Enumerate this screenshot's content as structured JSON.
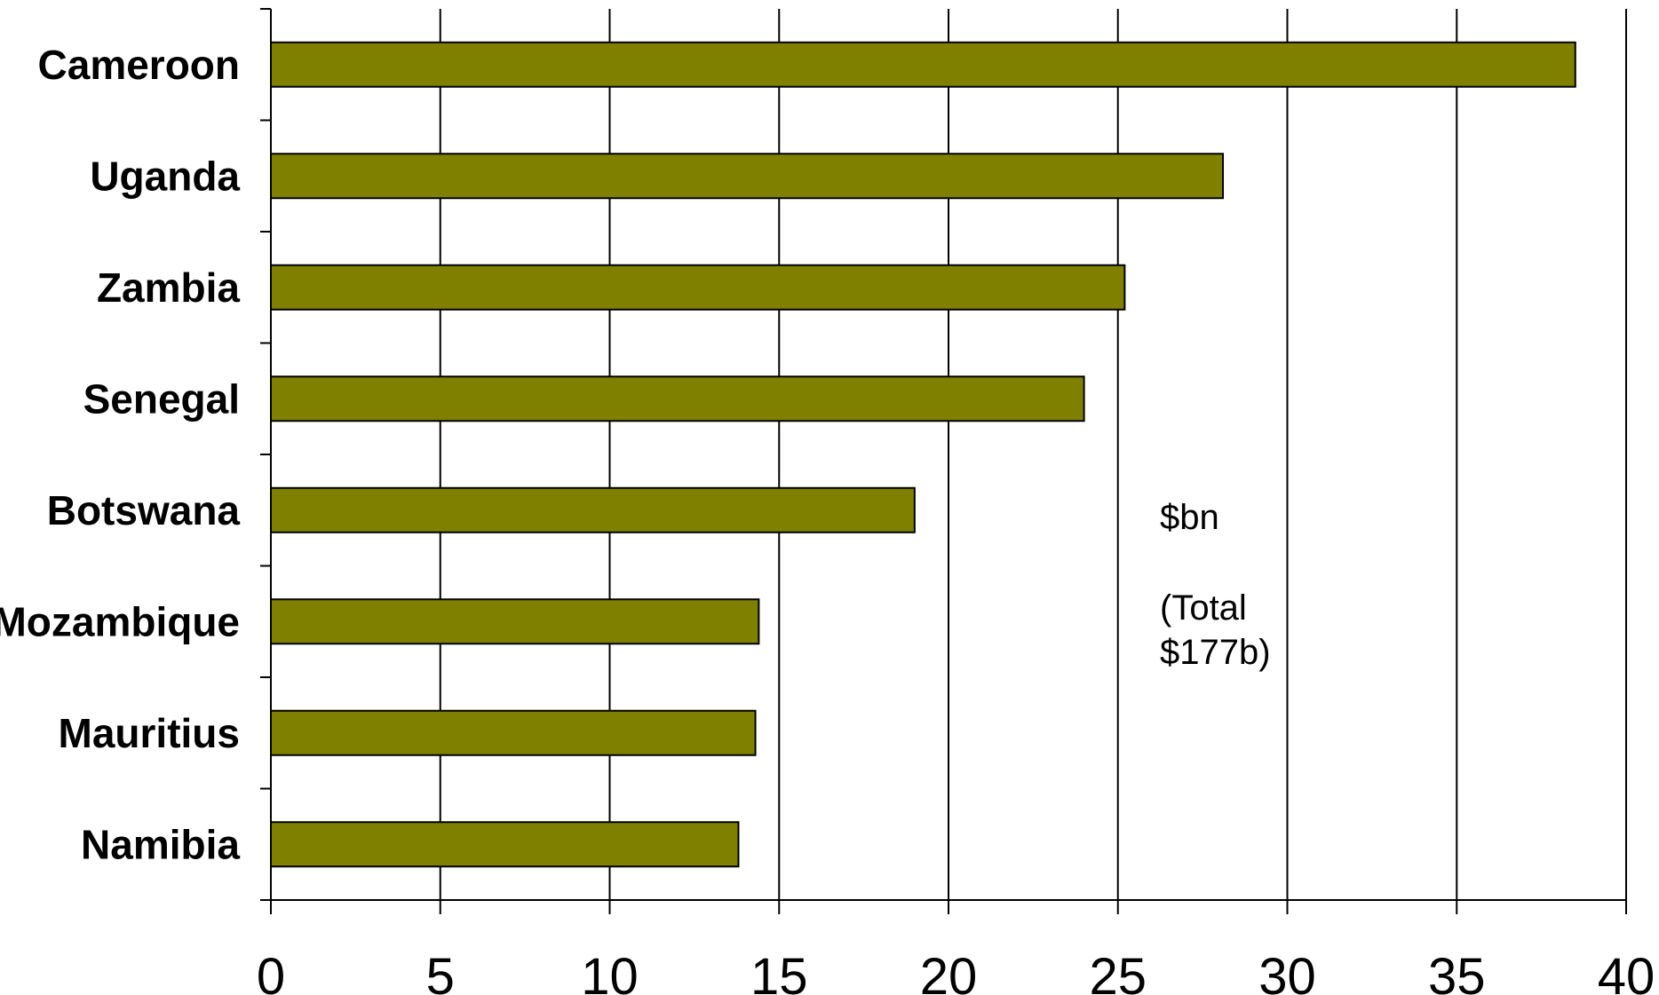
{
  "chart_data": {
    "type": "bar",
    "orientation": "horizontal",
    "categories": [
      "Cameroon",
      "Uganda",
      "Zambia",
      "Senegal",
      "Botswana",
      "Mozambique",
      "Mauritius",
      "Namibia"
    ],
    "values": [
      38.5,
      28.1,
      25.2,
      24.0,
      19.0,
      14.4,
      14.3,
      13.8
    ],
    "x_ticks": [
      "0",
      "5",
      "10",
      "15",
      "20",
      "25",
      "30",
      "35",
      "40"
    ],
    "xlim": [
      0,
      40
    ],
    "grid": "vertical",
    "bar_color": "#808000",
    "annotations": [
      "$bn",
      "(Total",
      "$177b)"
    ]
  }
}
